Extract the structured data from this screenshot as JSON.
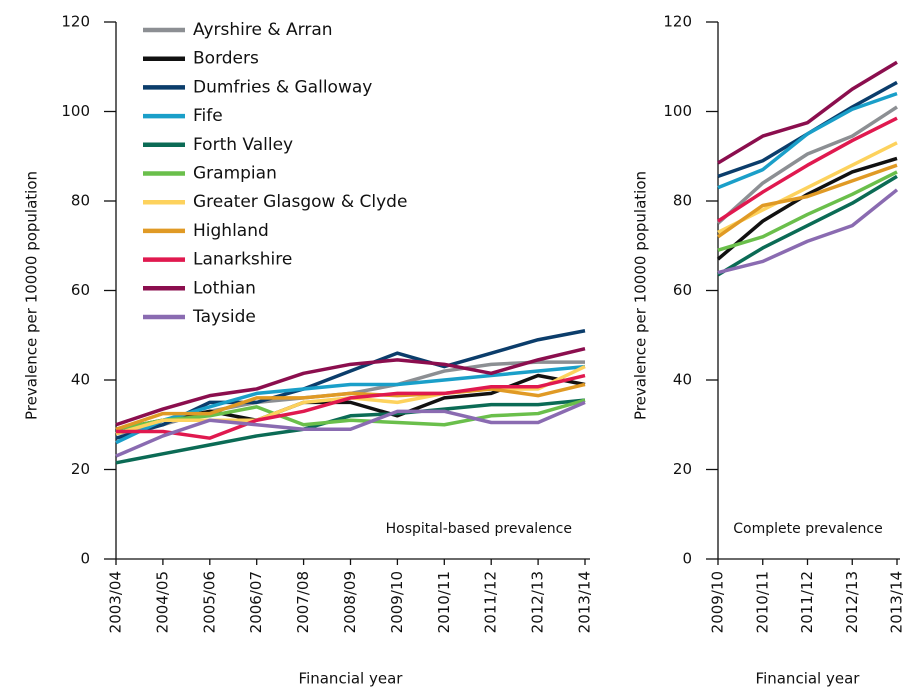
{
  "chart_data": [
    {
      "type": "line",
      "annotation": "Hospital-based prevalence",
      "xlabel": "Financial year",
      "ylabel": "Prevalence per 10000 population",
      "categories": [
        "2003/04",
        "2004/05",
        "2005/06",
        "2006/07",
        "2007/08",
        "2008/09",
        "2009/10",
        "2010/11",
        "2011/12",
        "2012/13",
        "2013/14"
      ],
      "ylim": [
        0,
        120
      ],
      "yticks": [
        0,
        20,
        40,
        60,
        80,
        100,
        120
      ],
      "legend": "top-left",
      "series": [
        {
          "name": "Ayrshire & Arran",
          "color": "#8c8f93",
          "values": [
            28,
            30,
            33,
            35,
            36,
            37,
            39,
            42,
            43.5,
            44,
            44
          ]
        },
        {
          "name": "Borders",
          "color": "#111111",
          "values": [
            29,
            31,
            33,
            31,
            35,
            35,
            32,
            36,
            37,
            41,
            39
          ]
        },
        {
          "name": "Dumfries & Galloway",
          "color": "#0b3d6b",
          "values": [
            27,
            30,
            35,
            35,
            38,
            42,
            46,
            43,
            46,
            49,
            51
          ]
        },
        {
          "name": "Fife",
          "color": "#1a9fc9",
          "values": [
            26,
            31,
            34,
            37,
            38,
            39,
            39,
            40,
            41,
            42,
            43
          ]
        },
        {
          "name": "Forth Valley",
          "color": "#0b6b55",
          "values": [
            21.5,
            23.5,
            25.5,
            27.5,
            29,
            32,
            32.5,
            33.5,
            34.5,
            34.5,
            35.5
          ]
        },
        {
          "name": "Grampian",
          "color": "#6abf4b",
          "values": [
            29,
            31,
            32,
            34,
            30,
            31,
            30.5,
            30,
            32,
            32.5,
            35.5
          ]
        },
        {
          "name": "Greater Glasgow & Clyde",
          "color": "#fdd25d",
          "values": [
            28,
            31,
            31,
            31,
            35,
            36,
            35,
            37,
            38,
            38,
            43
          ]
        },
        {
          "name": "Highland",
          "color": "#e09a25",
          "values": [
            29,
            32.5,
            32.5,
            36,
            36,
            37,
            36.5,
            37,
            38,
            36.5,
            39
          ]
        },
        {
          "name": "Lanarkshire",
          "color": "#e0194f",
          "values": [
            28.5,
            28.5,
            27,
            31,
            33,
            36,
            37,
            37,
            38.5,
            38.5,
            41
          ]
        },
        {
          "name": "Lothian",
          "color": "#8b0e4e",
          "values": [
            30,
            33.5,
            36.5,
            38,
            41.5,
            43.5,
            44.5,
            43.5,
            41.5,
            44.5,
            47
          ]
        },
        {
          "name": "Tayside",
          "color": "#8a6bb1",
          "values": [
            23,
            27.5,
            31,
            30,
            29,
            29,
            33,
            33,
            30.5,
            30.5,
            35
          ]
        }
      ]
    },
    {
      "type": "line",
      "annotation": "Complete prevalence",
      "xlabel": "Financial year",
      "ylabel": "Prevalence per 10000 population",
      "categories": [
        "2009/10",
        "2010/11",
        "2011/12",
        "2012/13",
        "2013/14"
      ],
      "ylim": [
        0,
        120
      ],
      "yticks": [
        0,
        20,
        40,
        60,
        80,
        100,
        120
      ],
      "series": [
        {
          "color": "#8c8f93",
          "values": [
            75,
            84,
            90.5,
            94.5,
            101
          ]
        },
        {
          "color": "#111111",
          "values": [
            67,
            75.5,
            81.5,
            86.5,
            89.5
          ]
        },
        {
          "color": "#0b3d6b",
          "values": [
            85.5,
            89,
            95,
            101,
            106.5
          ]
        },
        {
          "color": "#1a9fc9",
          "values": [
            83,
            87,
            95,
            100.5,
            104
          ]
        },
        {
          "color": "#0b6b55",
          "values": [
            63.5,
            69.5,
            74.5,
            79.5,
            85.5
          ]
        },
        {
          "color": "#6abf4b",
          "values": [
            69,
            72,
            77,
            81.5,
            86.5
          ]
        },
        {
          "color": "#fdd25d",
          "values": [
            73,
            78,
            83,
            88,
            93
          ]
        },
        {
          "color": "#e09a25",
          "values": [
            72,
            79,
            81,
            84.5,
            88
          ]
        },
        {
          "color": "#e0194f",
          "values": [
            75.5,
            82,
            88,
            93.5,
            98.5
          ]
        },
        {
          "color": "#8b0e4e",
          "values": [
            88.5,
            94.5,
            97.5,
            105,
            111
          ]
        },
        {
          "color": "#8a6bb1",
          "values": [
            64,
            66.5,
            71,
            74.5,
            82.5
          ]
        }
      ]
    }
  ]
}
